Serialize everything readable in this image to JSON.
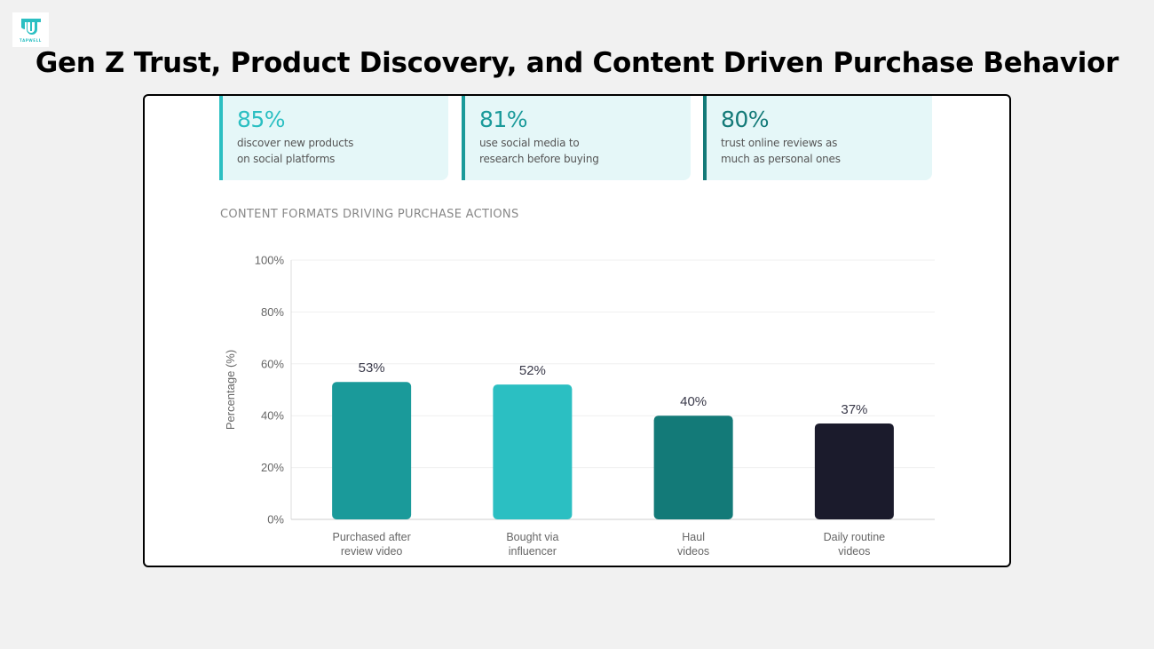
{
  "logo": {
    "wordmark": "TAPWELL",
    "icon": "tapwell-logo-icon",
    "color": "#2bbfc2"
  },
  "header": {
    "title": "Gen Z Trust, Product Discovery, and Content Driven Purchase Behavior"
  },
  "stat_cards": [
    {
      "value": "85%",
      "description": "discover new products on social platforms",
      "lines": [
        "discover new products",
        "on social platforms"
      ],
      "accent": "#2bbfc2"
    },
    {
      "value": "81%",
      "description": "use social media to research before buying",
      "lines": [
        "use social media to",
        "research before buying"
      ],
      "accent": "#1a9a9a"
    },
    {
      "value": "80%",
      "description": "trust online reviews as much as personal ones",
      "lines": [
        "trust online reviews as",
        "much as personal ones"
      ],
      "accent": "#137a78"
    }
  ],
  "section": {
    "heading": "CONTENT FORMATS DRIVING PURCHASE ACTIONS"
  },
  "chart_data": {
    "type": "bar",
    "title": "CONTENT FORMATS DRIVING PURCHASE ACTIONS",
    "xlabel": "",
    "ylabel": "Percentage (%)",
    "ylim": [
      0,
      100
    ],
    "yticks": [
      0,
      20,
      40,
      60,
      80,
      100
    ],
    "ytick_labels": [
      "0%",
      "20%",
      "40%",
      "60%",
      "80%",
      "100%"
    ],
    "grid": true,
    "legend": "none",
    "categories": [
      "Purchased after review video",
      "Bought via influencer",
      "Haul videos",
      "Daily routine videos"
    ],
    "category_lines": [
      [
        "Purchased after",
        "review video"
      ],
      [
        "Bought via",
        "influencer"
      ],
      [
        "Haul",
        "videos"
      ],
      [
        "Daily routine",
        "videos"
      ]
    ],
    "values": [
      53,
      52,
      40,
      37
    ],
    "data_labels": [
      "53%",
      "52%",
      "40%",
      "37%"
    ],
    "colors": [
      "#1a9a9a",
      "#2bbfc2",
      "#137a78",
      "#1b1b2c"
    ]
  }
}
